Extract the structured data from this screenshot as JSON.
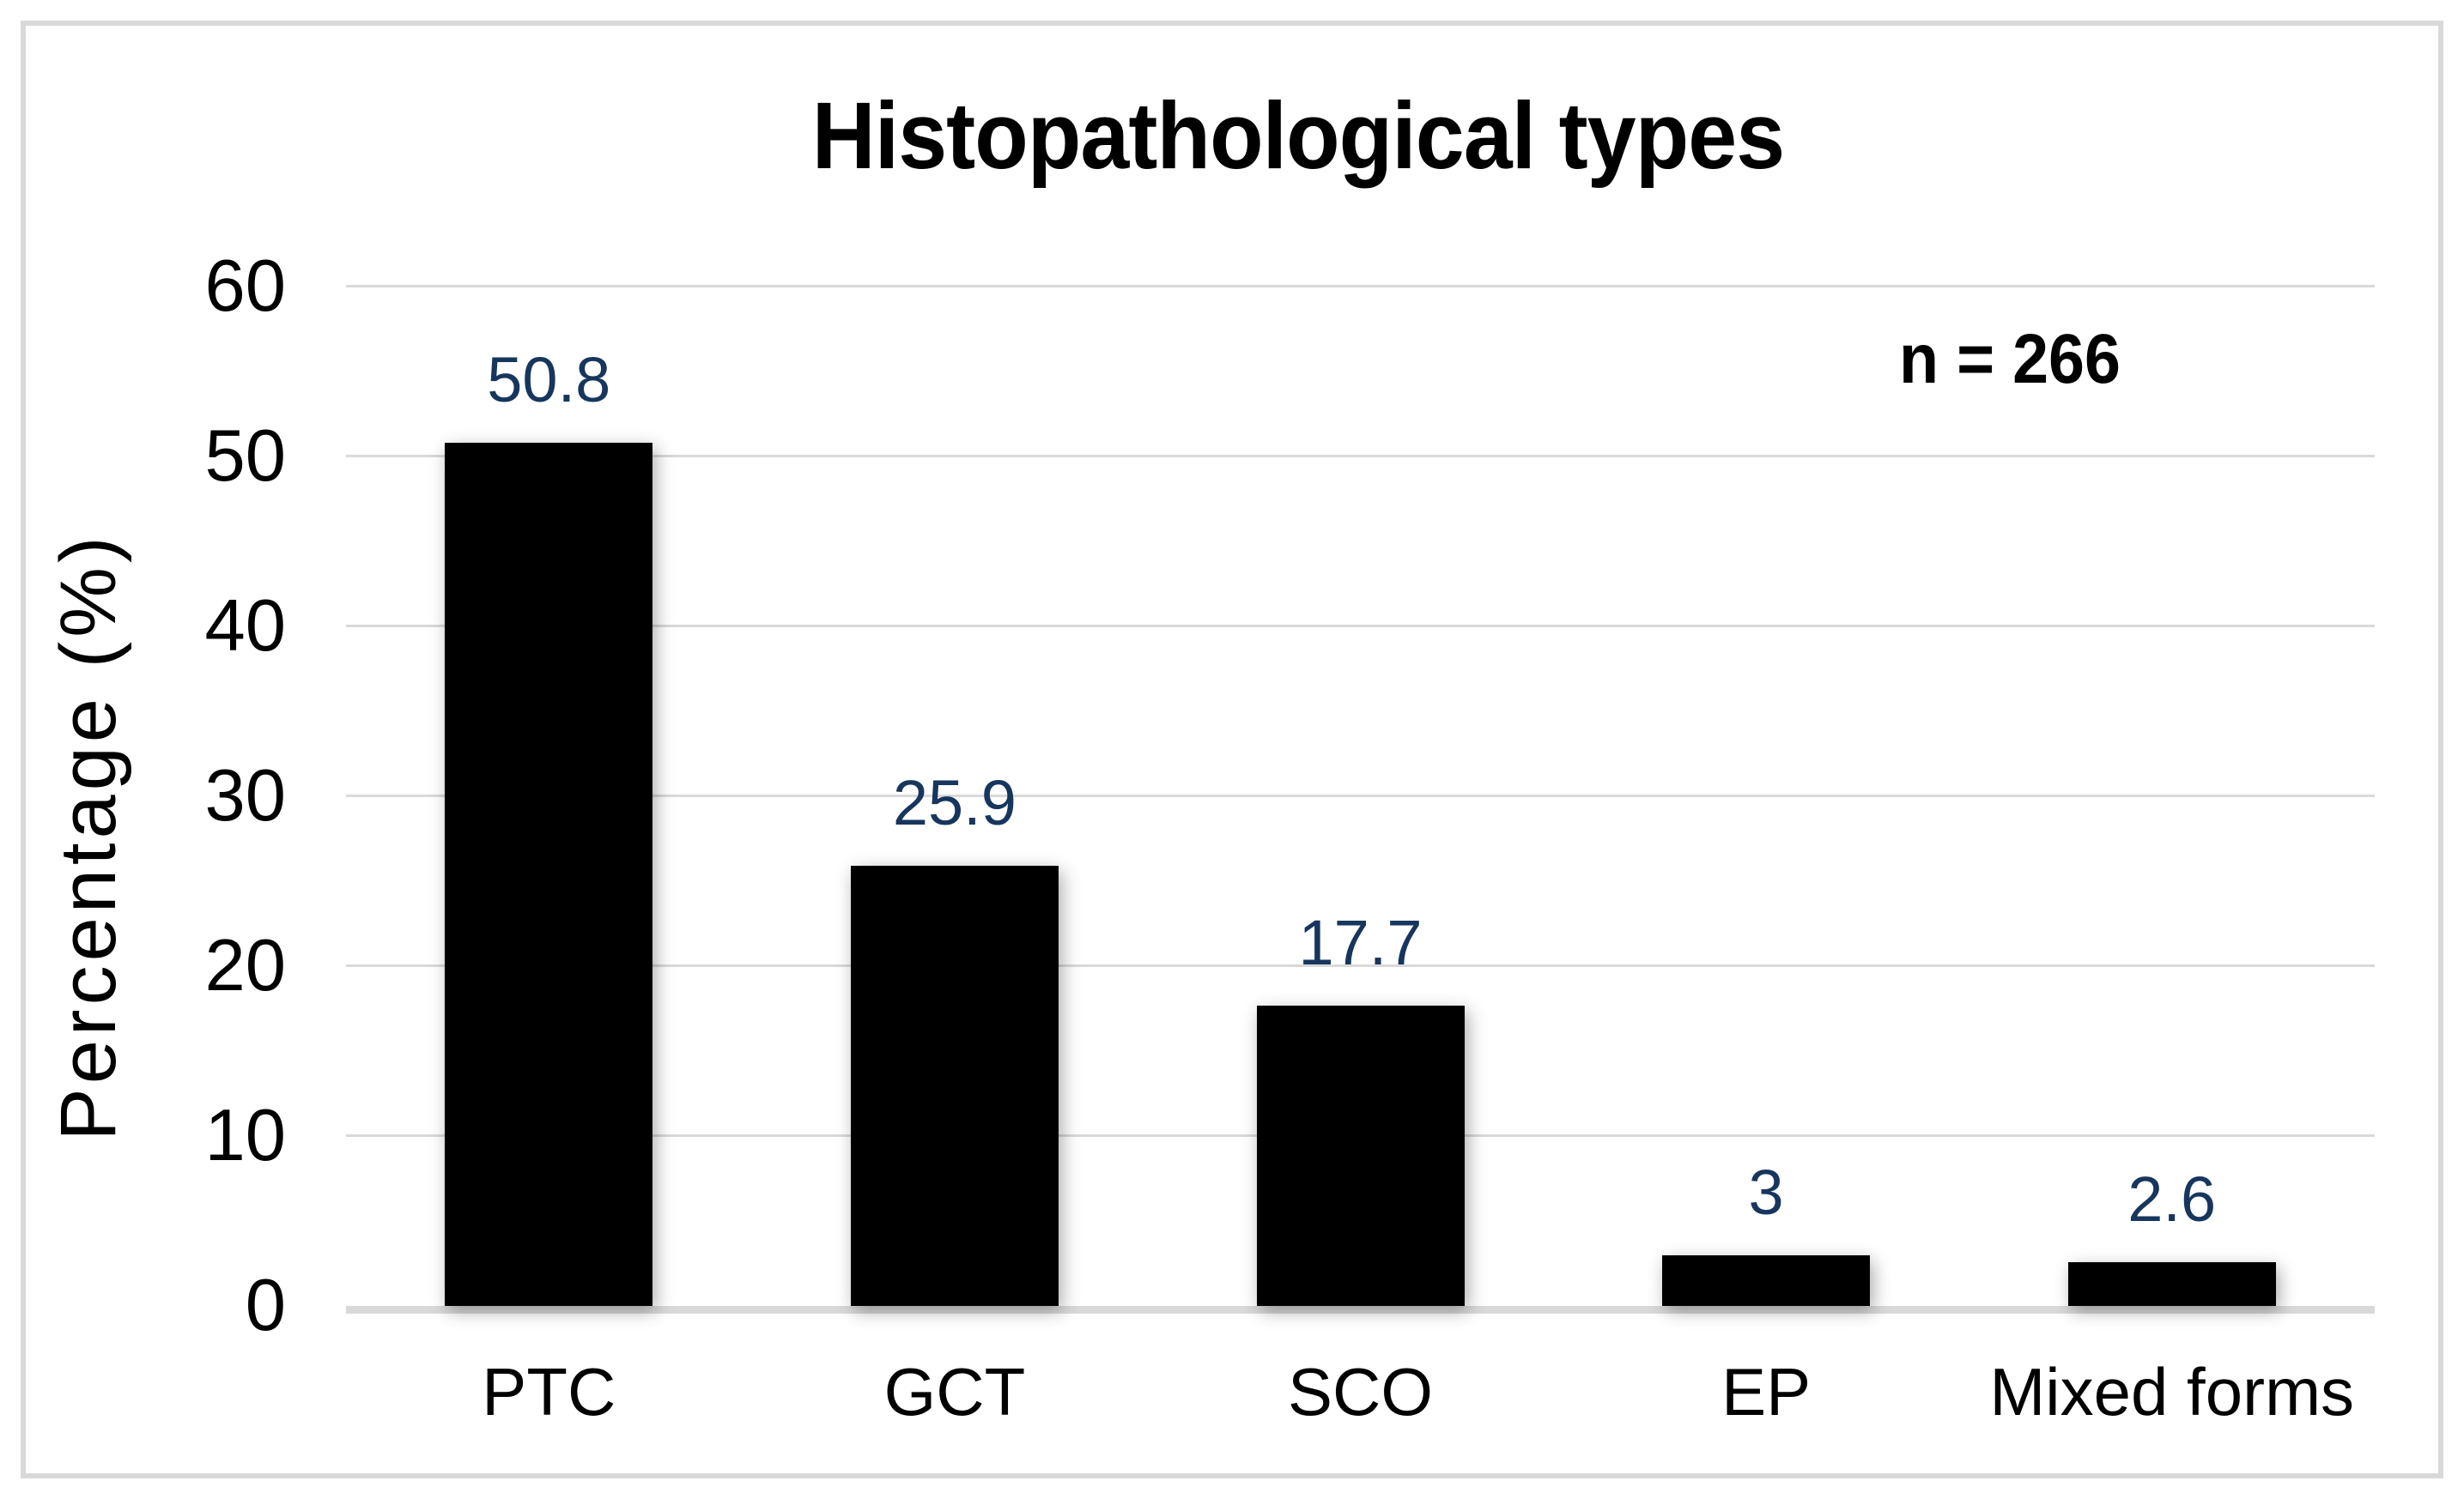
{
  "figure": {
    "background_color": "#FFFFFF",
    "border_color": "#D9D9D9"
  },
  "chart_data": {
    "type": "bar",
    "title": "Histopathological types",
    "annotation": "n = 266",
    "ylabel": "Percentage (%)",
    "xlabel": "",
    "categories": [
      "PTC",
      "GCT",
      "SCO",
      "EP",
      "Mixed forms"
    ],
    "values": [
      50.8,
      25.9,
      17.7,
      3,
      2.6
    ],
    "value_labels": [
      "50.8",
      "25.9",
      "17.7",
      "3",
      "2.6"
    ],
    "yticks": [
      0,
      10,
      20,
      30,
      40,
      50,
      60
    ],
    "ylim": [
      0,
      60
    ],
    "grid": true,
    "legend": false,
    "bar_color": "#000000",
    "value_label_color": "#17365D",
    "gridline_color": "#D9D9D9",
    "axis_line_color": "#D9D9D9",
    "text_color": "#000000"
  }
}
